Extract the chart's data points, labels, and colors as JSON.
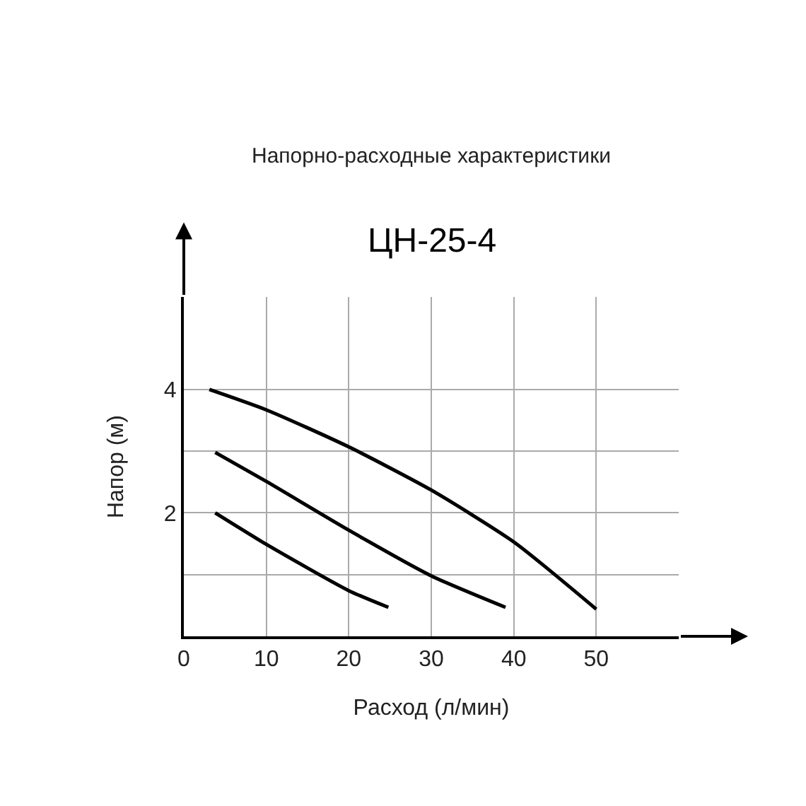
{
  "chart_data": {
    "type": "line",
    "title": "Напорно-расходные характеристики",
    "subtitle": "ЦН-25-4",
    "xlabel": "Расход (л/мин)",
    "ylabel": "Напор (м)",
    "series": [
      {
        "color": "#000000",
        "x": [
          3.1,
          10,
          20,
          30,
          40,
          50
        ],
        "values": [
          4.0,
          3.67,
          3.07,
          2.37,
          1.53,
          0.44
        ]
      },
      {
        "color": "#000000",
        "x": [
          3.8,
          10,
          20,
          30,
          39
        ],
        "values": [
          2.98,
          2.51,
          1.72,
          0.98,
          0.47
        ]
      },
      {
        "color": "#000000",
        "x": [
          3.8,
          10,
          20,
          24.8
        ],
        "values": [
          2.0,
          1.49,
          0.74,
          0.47
        ]
      }
    ],
    "xlim": [
      0,
      60
    ],
    "ylim": [
      0,
      5.5
    ],
    "xticks": [
      0,
      10,
      20,
      30,
      40,
      50
    ],
    "yticks": [
      {
        "value": 1,
        "label": null
      },
      2,
      {
        "value": 3,
        "label": null
      },
      4
    ],
    "grid": true,
    "marker": "none",
    "line_style": "solid"
  }
}
